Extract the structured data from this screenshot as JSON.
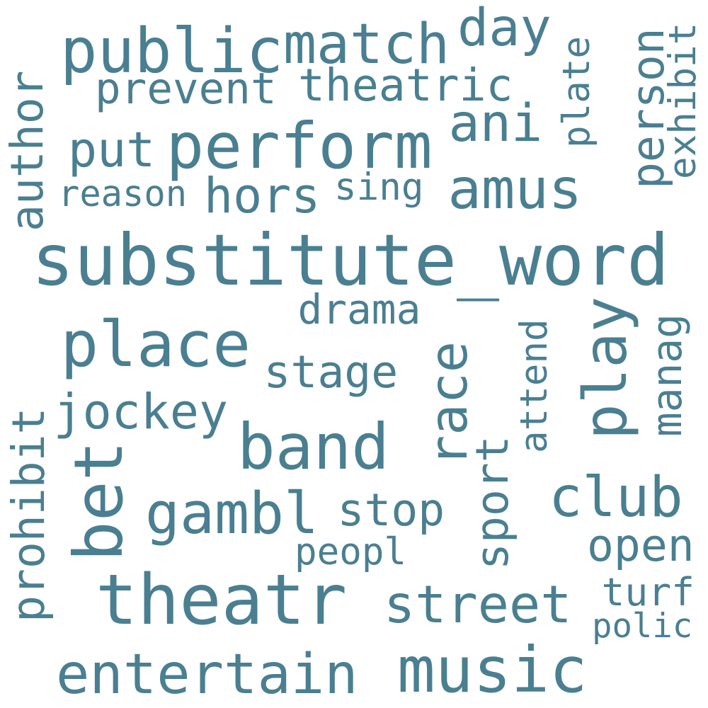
{
  "color": "#4a7f91",
  "words": [
    "substitute_word",
    "theatr",
    "music",
    "entertain",
    "perform",
    "public",
    "band",
    "place",
    "race",
    "play",
    "bet",
    "gambl",
    "club",
    "street",
    "amus",
    "author",
    "prohibit",
    "person",
    "match",
    "jockey",
    "sport",
    "stage",
    "ani",
    "hors",
    "day",
    "put",
    "theatric",
    "prevent",
    "open",
    "stop",
    "drama",
    "exhibit",
    "attend",
    "manag",
    "plate",
    "reason",
    "sing",
    "peopl",
    "turf",
    "polic"
  ]
}
